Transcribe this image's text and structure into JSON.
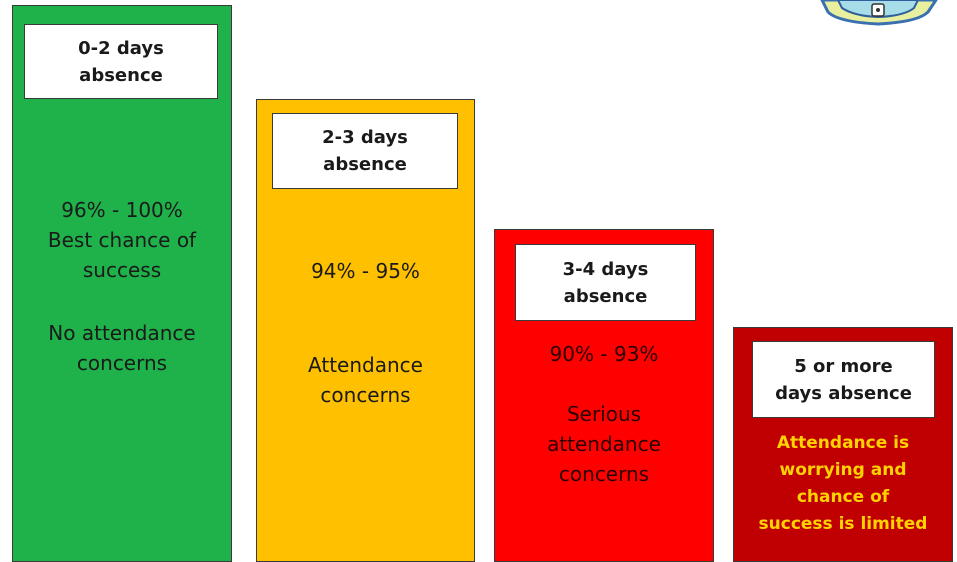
{
  "colors": {
    "green": "#1fb14a",
    "amber": "#ffc000",
    "red": "#ff0000",
    "dark_red": "#c00000",
    "dark_red_text": "#ffd200"
  },
  "bars": [
    {
      "label": "0-2 days\nabsence",
      "range": "96% - 100%\nBest chance of\nsuccess",
      "note": "No attendance\nconcerns"
    },
    {
      "label": "2-3 days\nabsence",
      "range": "94% - 95%",
      "note": "Attendance\nconcerns"
    },
    {
      "label": "3-4 days\nabsence",
      "range": "90% - 93%",
      "note": "Serious\nattendance\nconcerns"
    },
    {
      "label": "5 or more\ndays absence",
      "note": "Attendance is\nworrying and\nchance of\nsuccess is limited"
    }
  ],
  "crest": {
    "icon": "school-crest-icon"
  }
}
